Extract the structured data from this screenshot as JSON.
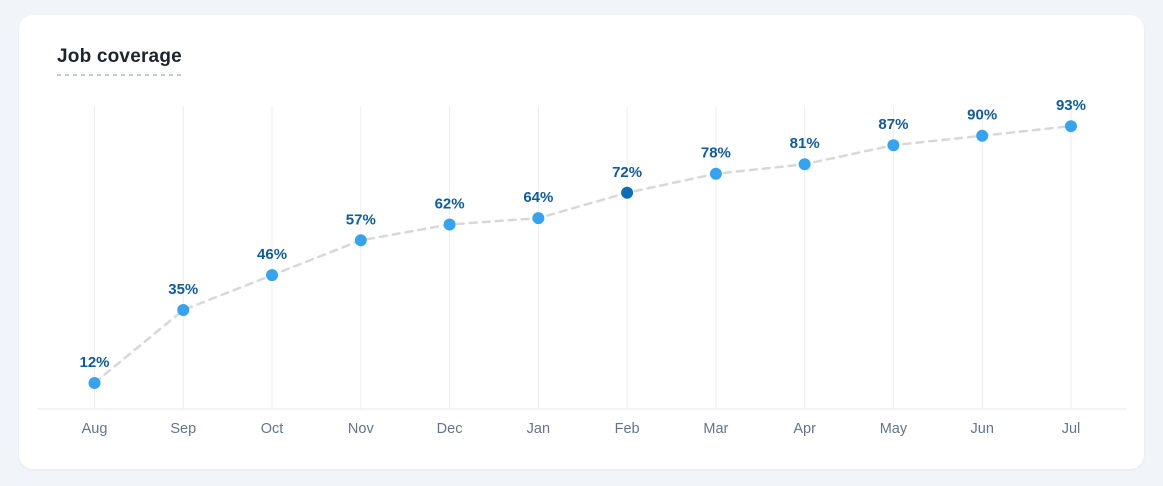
{
  "chart_data": {
    "type": "line",
    "title": "Job coverage",
    "categories": [
      "Aug",
      "Sep",
      "Oct",
      "Nov",
      "Dec",
      "Jan",
      "Feb",
      "Mar",
      "Apr",
      "May",
      "Jun",
      "Jul"
    ],
    "values": [
      12,
      35,
      46,
      57,
      62,
      64,
      72,
      78,
      81,
      87,
      90,
      93
    ],
    "point_labels": [
      "12%",
      "35%",
      "46%",
      "57%",
      "62%",
      "64%",
      "72%",
      "78%",
      "81%",
      "87%",
      "90%",
      "93%"
    ],
    "unit": "%",
    "highlighted_index": 6,
    "highlighted_point": {
      "category": "Feb",
      "value": 72
    },
    "ylim": [
      0,
      100
    ],
    "line_style": "dashed",
    "grid": "vertical-only",
    "legend": "none",
    "xlabel": "",
    "ylabel": ""
  },
  "colors": {
    "page_background": "#f1f5f9",
    "card_background": "#ffffff",
    "title_text": "#1d242e",
    "point_fill": "#36a3f0",
    "point_fill_highlight": "#0d6db6",
    "point_label_text": "#0e5c9c",
    "trend_line": "#d8d8d8",
    "grid_line": "#e9eef3",
    "axis_line": "#e4e8ed",
    "month_label_text": "#64748b"
  }
}
